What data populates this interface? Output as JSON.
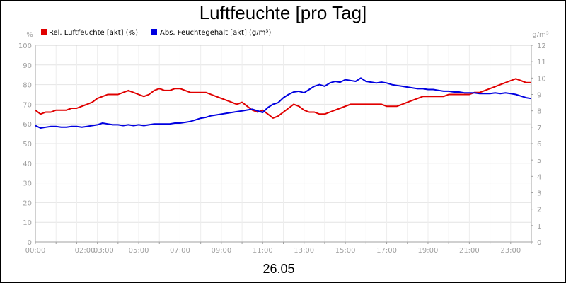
{
  "chart_data": {
    "type": "line",
    "title": "Luftfeuchte [pro Tag]",
    "xlabel": "26.05",
    "y_left_unit": "%",
    "y_right_unit": "g/m³",
    "ylim_left": [
      0,
      100
    ],
    "ylim_right": [
      0,
      12
    ],
    "left_ticks": [
      "0",
      "10",
      "20",
      "30",
      "40",
      "50",
      "60",
      "70",
      "80",
      "90",
      "100"
    ],
    "right_ticks": [
      "0",
      "1",
      "2",
      "3",
      "4",
      "5",
      "6",
      "7",
      "8",
      "9",
      "10",
      "11",
      "12"
    ],
    "x_ticks": [
      {
        "x": 0,
        "label": "00:00"
      },
      {
        "x": 2.4,
        "label": "02:00"
      },
      {
        "x": 3.3,
        "label": "03:00"
      },
      {
        "x": 5,
        "label": "05:00"
      },
      {
        "x": 7,
        "label": "07:00"
      },
      {
        "x": 9,
        "label": "09:00"
      },
      {
        "x": 11,
        "label": "11:00"
      },
      {
        "x": 13,
        "label": "13:00"
      },
      {
        "x": 15,
        "label": "15:00"
      },
      {
        "x": 17,
        "label": "17:00"
      },
      {
        "x": 19,
        "label": "19:00"
      },
      {
        "x": 21,
        "label": "21:00"
      },
      {
        "x": 23,
        "label": "23:00"
      }
    ],
    "xlim": [
      0,
      24
    ],
    "grid": true,
    "legend_position": "top-left",
    "series": [
      {
        "name": "Rel. Luftfeuchte [akt] (%)",
        "color": "#e00000",
        "axis": "left",
        "x": [
          0,
          0.25,
          0.5,
          0.75,
          1,
          1.25,
          1.5,
          1.75,
          2,
          2.25,
          2.5,
          2.75,
          3,
          3.25,
          3.5,
          3.75,
          4,
          4.25,
          4.5,
          4.75,
          5,
          5.25,
          5.5,
          5.75,
          6,
          6.25,
          6.5,
          6.75,
          7,
          7.25,
          7.5,
          7.75,
          8,
          8.25,
          8.5,
          8.75,
          9,
          9.25,
          9.5,
          9.75,
          10,
          10.25,
          10.5,
          10.75,
          11,
          11.25,
          11.5,
          11.75,
          12,
          12.25,
          12.5,
          12.75,
          13,
          13.25,
          13.5,
          13.75,
          14,
          14.25,
          14.5,
          14.75,
          15,
          15.25,
          15.5,
          15.75,
          16,
          16.25,
          16.5,
          16.75,
          17,
          17.25,
          17.5,
          17.75,
          18,
          18.25,
          18.5,
          18.75,
          19,
          19.25,
          19.5,
          19.75,
          20,
          20.25,
          20.5,
          20.75,
          21,
          21.25,
          21.5,
          21.75,
          22,
          22.25,
          22.5,
          22.75,
          23,
          23.25,
          23.5,
          23.75,
          24
        ],
        "values": [
          67,
          65,
          66,
          66,
          67,
          67,
          67,
          68,
          68,
          69,
          70,
          71,
          73,
          74,
          75,
          75,
          75,
          76,
          77,
          76,
          75,
          74,
          75,
          77,
          78,
          77,
          77,
          78,
          78,
          77,
          76,
          76,
          76,
          76,
          75,
          74,
          73,
          72,
          71,
          70,
          71,
          69,
          67,
          66,
          67,
          65,
          63,
          64,
          66,
          68,
          70,
          69,
          67,
          66,
          66,
          65,
          65,
          66,
          67,
          68,
          69,
          70,
          70,
          70,
          70,
          70,
          70,
          70,
          69,
          69,
          69,
          70,
          71,
          72,
          73,
          74,
          74,
          74,
          74,
          74,
          75,
          75,
          75,
          75,
          75,
          76,
          76,
          77,
          78,
          79,
          80,
          81,
          82,
          83,
          82,
          81,
          81
        ]
      },
      {
        "name": "Abs. Feuchtegehalt [akt] (g/m³)",
        "color": "#0000e0",
        "axis": "right",
        "x": [
          0,
          0.25,
          0.5,
          0.75,
          1,
          1.25,
          1.5,
          1.75,
          2,
          2.25,
          2.5,
          2.75,
          3,
          3.25,
          3.5,
          3.75,
          4,
          4.25,
          4.5,
          4.75,
          5,
          5.25,
          5.5,
          5.75,
          6,
          6.25,
          6.5,
          6.75,
          7,
          7.25,
          7.5,
          7.75,
          8,
          8.25,
          8.5,
          8.75,
          9,
          9.25,
          9.5,
          9.75,
          10,
          10.25,
          10.5,
          10.75,
          11,
          11.25,
          11.5,
          11.75,
          12,
          12.25,
          12.5,
          12.75,
          13,
          13.25,
          13.5,
          13.75,
          14,
          14.25,
          14.5,
          14.75,
          15,
          15.25,
          15.5,
          15.75,
          16,
          16.25,
          16.5,
          16.75,
          17,
          17.25,
          17.5,
          17.75,
          18,
          18.25,
          18.5,
          18.75,
          19,
          19.25,
          19.5,
          19.75,
          20,
          20.25,
          20.5,
          20.75,
          21,
          21.25,
          21.5,
          21.75,
          22,
          22.25,
          22.5,
          22.75,
          23,
          23.25,
          23.5,
          23.75,
          24
        ],
        "values": [
          7.1,
          6.95,
          7.0,
          7.05,
          7.05,
          7.0,
          7.0,
          7.05,
          7.05,
          7.0,
          7.05,
          7.1,
          7.15,
          7.25,
          7.2,
          7.15,
          7.15,
          7.1,
          7.15,
          7.1,
          7.15,
          7.1,
          7.15,
          7.2,
          7.2,
          7.2,
          7.2,
          7.25,
          7.25,
          7.3,
          7.35,
          7.45,
          7.55,
          7.6,
          7.7,
          7.75,
          7.8,
          7.85,
          7.9,
          7.95,
          8.0,
          8.05,
          8.1,
          8.0,
          7.9,
          8.2,
          8.4,
          8.5,
          8.8,
          9.0,
          9.15,
          9.2,
          9.1,
          9.3,
          9.5,
          9.6,
          9.5,
          9.7,
          9.8,
          9.75,
          9.9,
          9.85,
          9.8,
          10.0,
          9.8,
          9.75,
          9.7,
          9.75,
          9.7,
          9.6,
          9.55,
          9.5,
          9.45,
          9.4,
          9.35,
          9.35,
          9.3,
          9.3,
          9.25,
          9.2,
          9.2,
          9.15,
          9.15,
          9.1,
          9.1,
          9.1,
          9.05,
          9.05,
          9.05,
          9.1,
          9.05,
          9.1,
          9.05,
          9.0,
          8.9,
          8.8,
          8.75
        ]
      }
    ]
  }
}
